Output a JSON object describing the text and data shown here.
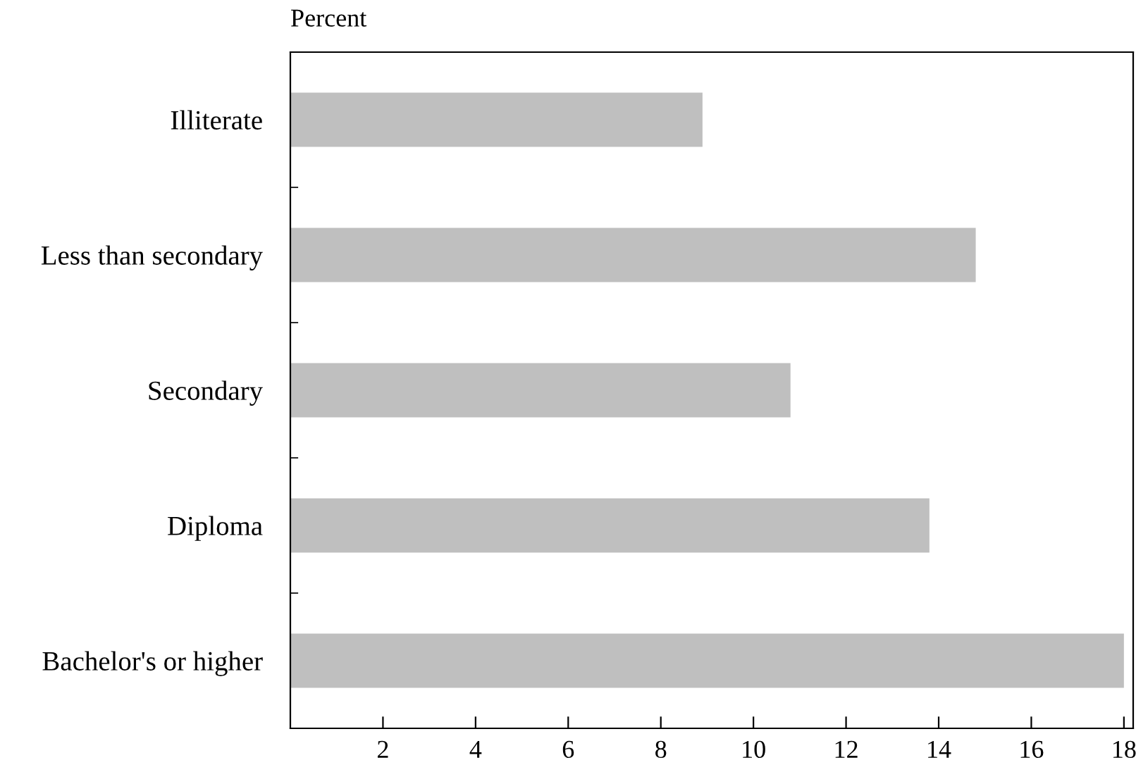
{
  "chart_data": {
    "type": "bar",
    "orientation": "horizontal",
    "xlabel": "Percent",
    "categories": [
      "Illiterate",
      "Less than secondary",
      "Secondary",
      "Diploma",
      "Bachelor's or higher"
    ],
    "values": [
      8.9,
      14.8,
      10.8,
      13.8,
      18.0
    ],
    "color": "#bfbfbf",
    "xlim": [
      0,
      18.2
    ],
    "xticks": [
      2,
      4,
      6,
      8,
      10,
      12,
      14,
      16,
      18
    ],
    "grid": false,
    "legend": false
  }
}
